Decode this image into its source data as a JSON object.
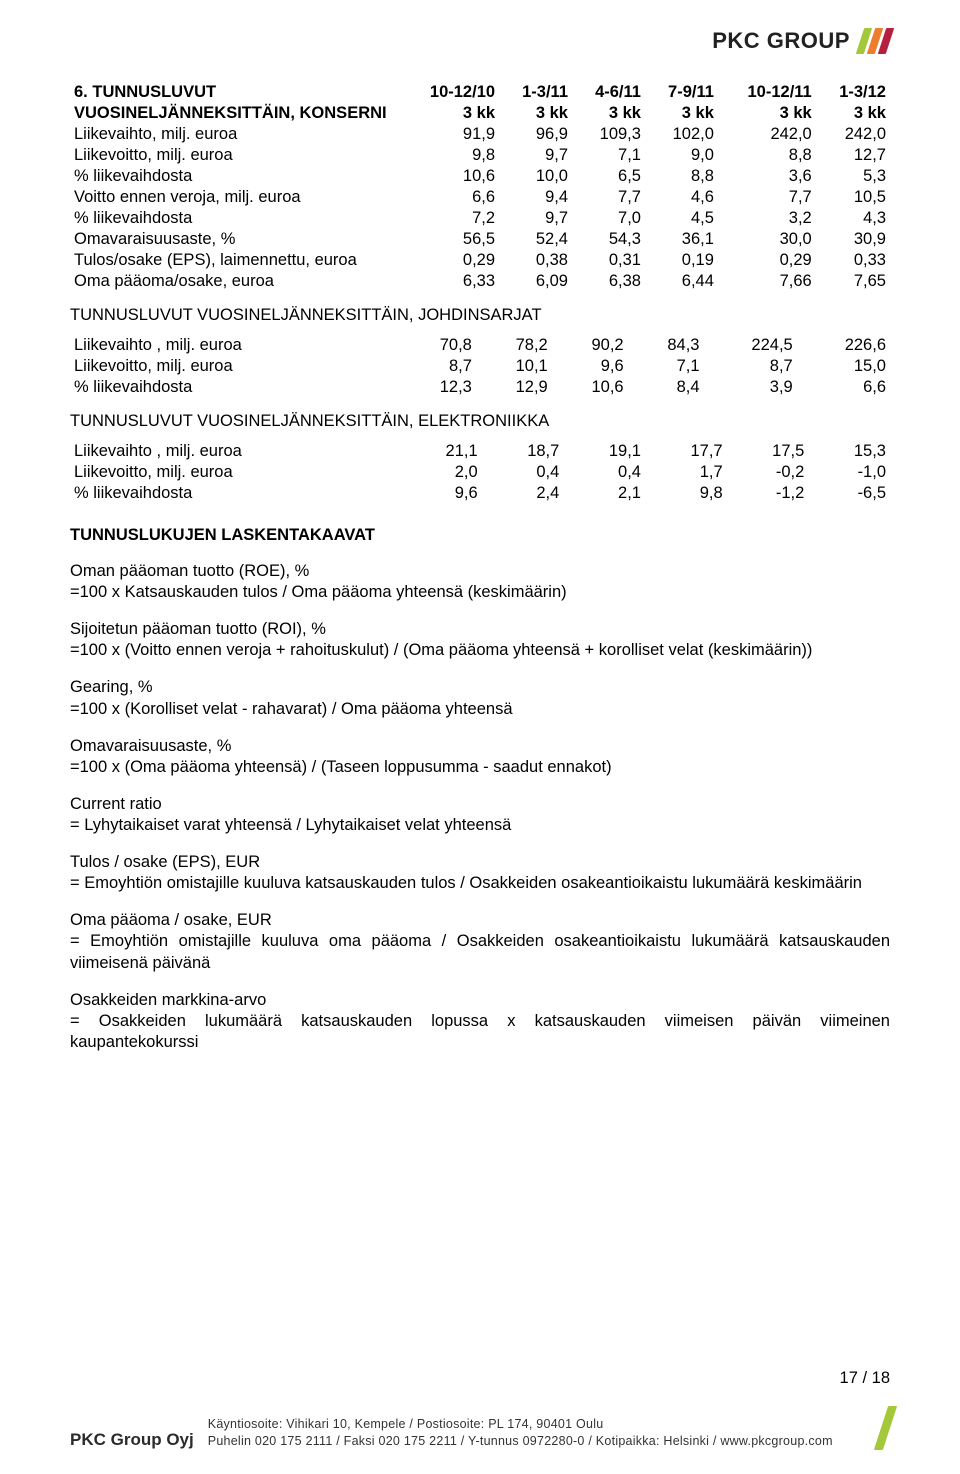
{
  "logo": {
    "text": "PKC GROUP",
    "bar_colors": [
      "#a3c93a",
      "#ee7e2f",
      "#b61f3e"
    ]
  },
  "section6": {
    "num": "6.",
    "title_a": "TUNNUSLUVUT",
    "title_b": "VUOSINELJÄNNEKSITTÄIN, KONSERNI",
    "cols_a": [
      "10-12/10",
      "1-3/11",
      "4-6/11",
      "7-9/11",
      "10-12/11",
      "1-3/12"
    ],
    "cols_b": [
      "3 kk",
      "3 kk",
      "3 kk",
      "3 kk",
      "3 kk",
      "3 kk"
    ],
    "rows": [
      {
        "l": "Liikevaihto, milj. euroa",
        "v": [
          "91,9",
          "96,9",
          "109,3",
          "102,0",
          "242,0",
          "242,0"
        ]
      },
      {
        "l": "Liikevoitto, milj. euroa",
        "v": [
          "9,8",
          "9,7",
          "7,1",
          "9,0",
          "8,8",
          "12,7"
        ]
      },
      {
        "l": "% liikevaihdosta",
        "v": [
          "10,6",
          "10,0",
          "6,5",
          "8,8",
          "3,6",
          "5,3"
        ]
      },
      {
        "l": "Voitto ennen veroja, milj. euroa",
        "v": [
          "6,6",
          "9,4",
          "7,7",
          "4,6",
          "7,7",
          "10,5"
        ]
      },
      {
        "l": "% liikevaihdosta",
        "v": [
          "7,2",
          "9,7",
          "7,0",
          "4,5",
          "3,2",
          "4,3"
        ]
      },
      {
        "l": "Omavaraisuusaste, %",
        "v": [
          "56,5",
          "52,4",
          "54,3",
          "36,1",
          "30,0",
          "30,9"
        ]
      },
      {
        "l": "Tulos/osake (EPS), laimennettu, euroa",
        "v": [
          "0,29",
          "0,38",
          "0,31",
          "0,19",
          "0,29",
          "0,33"
        ]
      },
      {
        "l": "Oma pääoma/osake, euroa",
        "v": [
          "6,33",
          "6,09",
          "6,38",
          "6,44",
          "7,66",
          "7,65"
        ]
      }
    ]
  },
  "johdin": {
    "heading": "TUNNUSLUVUT VUOSINELJÄNNEKSITTÄIN, JOHDINSARJAT",
    "rows": [
      {
        "l": "Liikevaihto , milj. euroa",
        "v": [
          "70,8",
          "78,2",
          "90,2",
          "84,3",
          "224,5",
          "226,6"
        ]
      },
      {
        "l": "Liikevoitto, milj. euroa",
        "v": [
          "8,7",
          "10,1",
          "9,6",
          "7,1",
          "8,7",
          "15,0"
        ]
      },
      {
        "l": "% liikevaihdosta",
        "v": [
          "12,3",
          "12,9",
          "10,6",
          "8,4",
          "3,9",
          "6,6"
        ]
      }
    ]
  },
  "elek": {
    "heading": "TUNNUSLUVUT VUOSINELJÄNNEKSITTÄIN, ELEKTRONIIKKA",
    "rows": [
      {
        "l": "Liikevaihto , milj. euroa",
        "v": [
          "21,1",
          "18,7",
          "19,1",
          "17,7",
          "17,5",
          "15,3"
        ]
      },
      {
        "l": "Liikevoitto, milj. euroa",
        "v": [
          "2,0",
          "0,4",
          "0,4",
          "1,7",
          "-0,2",
          "-1,0"
        ]
      },
      {
        "l": "% liikevaihdosta",
        "v": [
          "9,6",
          "2,4",
          "2,1",
          "9,8",
          "-1,2",
          "-6,5"
        ]
      }
    ]
  },
  "formulas": {
    "heading": "TUNNUSLUKUJEN LASKENTAKAAVAT",
    "items": [
      {
        "t": "Oman pääoman tuotto (ROE), %",
        "b": "=100 x Katsauskauden tulos / Oma pääoma yhteensä (keskimäärin)"
      },
      {
        "t": "Sijoitetun pääoman tuotto (ROI), %",
        "b": "=100 x (Voitto ennen veroja + rahoituskulut) / (Oma pääoma yhteensä + korolliset velat (keskimäärin))"
      },
      {
        "t": "Gearing, %",
        "b": "=100 x (Korolliset velat - rahavarat) / Oma pääoma yhteensä"
      },
      {
        "t": "Omavaraisuusaste, %",
        "b": "=100 x (Oma pääoma yhteensä) / (Taseen loppusumma - saadut ennakot)"
      },
      {
        "t": "Current ratio",
        "b": "= Lyhytaikaiset varat yhteensä / Lyhytaikaiset velat yhteensä"
      },
      {
        "t": "Tulos / osake (EPS), EUR",
        "b": "= Emoyhtiön omistajille kuuluva katsauskauden tulos / Osakkeiden osakeantioikaistu lukumäärä keskimäärin"
      },
      {
        "t": "Oma pääoma / osake, EUR",
        "b": "= Emoyhtiön omistajille kuuluva oma pääoma / Osakkeiden osakeantioikaistu lukumäärä katsauskauden viimeisenä päivänä"
      },
      {
        "t": "Osakkeiden markkina-arvo",
        "b": "= Osakkeiden lukumäärä katsauskauden lopussa x katsauskauden viimeisen päivän viimeinen kaupantekokurssi"
      }
    ]
  },
  "pagenum": "17 / 18",
  "footer": {
    "company": "PKC Group Oyj",
    "line1": "Käyntiosoite: Vihikari 10, Kempele / Postiosoite: PL 174, 90401 Oulu",
    "line2": "Puhelin 020 175 2111 / Faksi 020 175 2211 / Y-tunnus 0972280-0 / Kotipaikka: Helsinki / www.pkcgroup.com",
    "bar_color": "#a3c93a"
  }
}
